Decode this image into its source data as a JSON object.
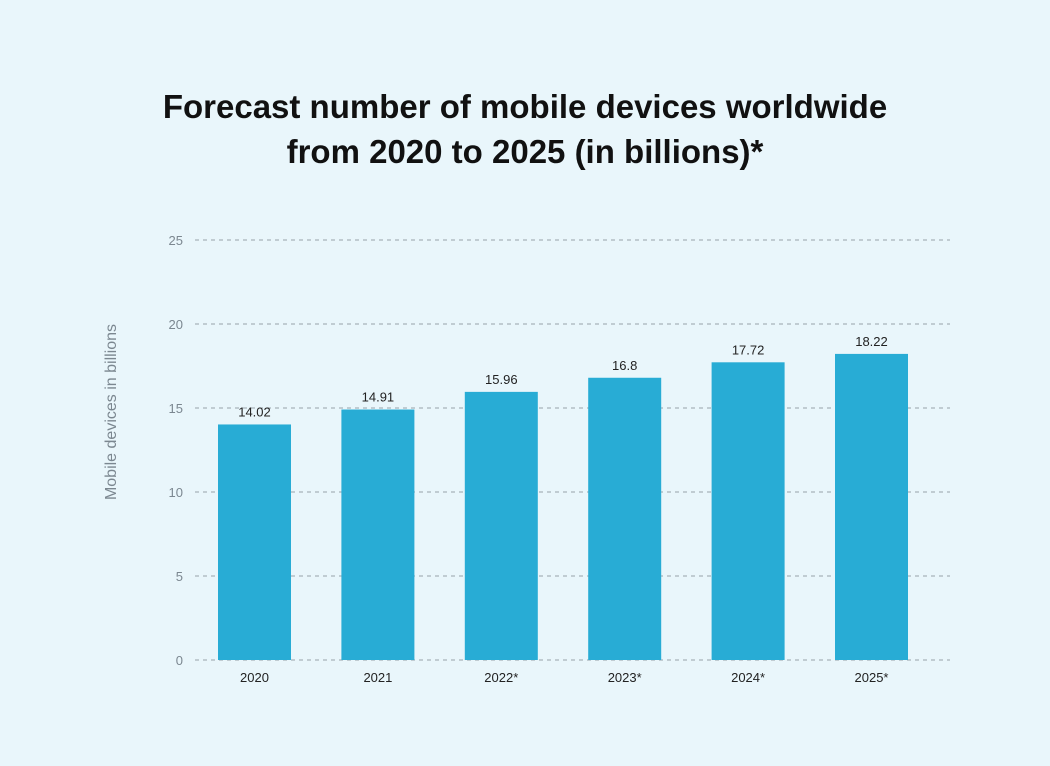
{
  "chart_data": {
    "type": "bar",
    "title_line1": "Forecast number of mobile devices worldwide",
    "title_line2": "from 2020 to 2025 (in billions)*",
    "categories": [
      "2020",
      "2021",
      "2022*",
      "2023*",
      "2024*",
      "2025*"
    ],
    "values": [
      14.02,
      14.91,
      15.96,
      16.8,
      17.72,
      18.22
    ],
    "data_labels": [
      "14.02",
      "14.91",
      "15.96",
      "16.8",
      "17.72",
      "18.22"
    ],
    "xlabel": "",
    "ylabel": "Mobile devices in billions",
    "ylim": [
      0,
      25
    ],
    "yticks": [
      "0",
      "5",
      "10",
      "15",
      "20",
      "25"
    ],
    "grid": true,
    "grid_style": "dashed",
    "bar_color": "#28acd5",
    "background": "#e9f6fb"
  }
}
